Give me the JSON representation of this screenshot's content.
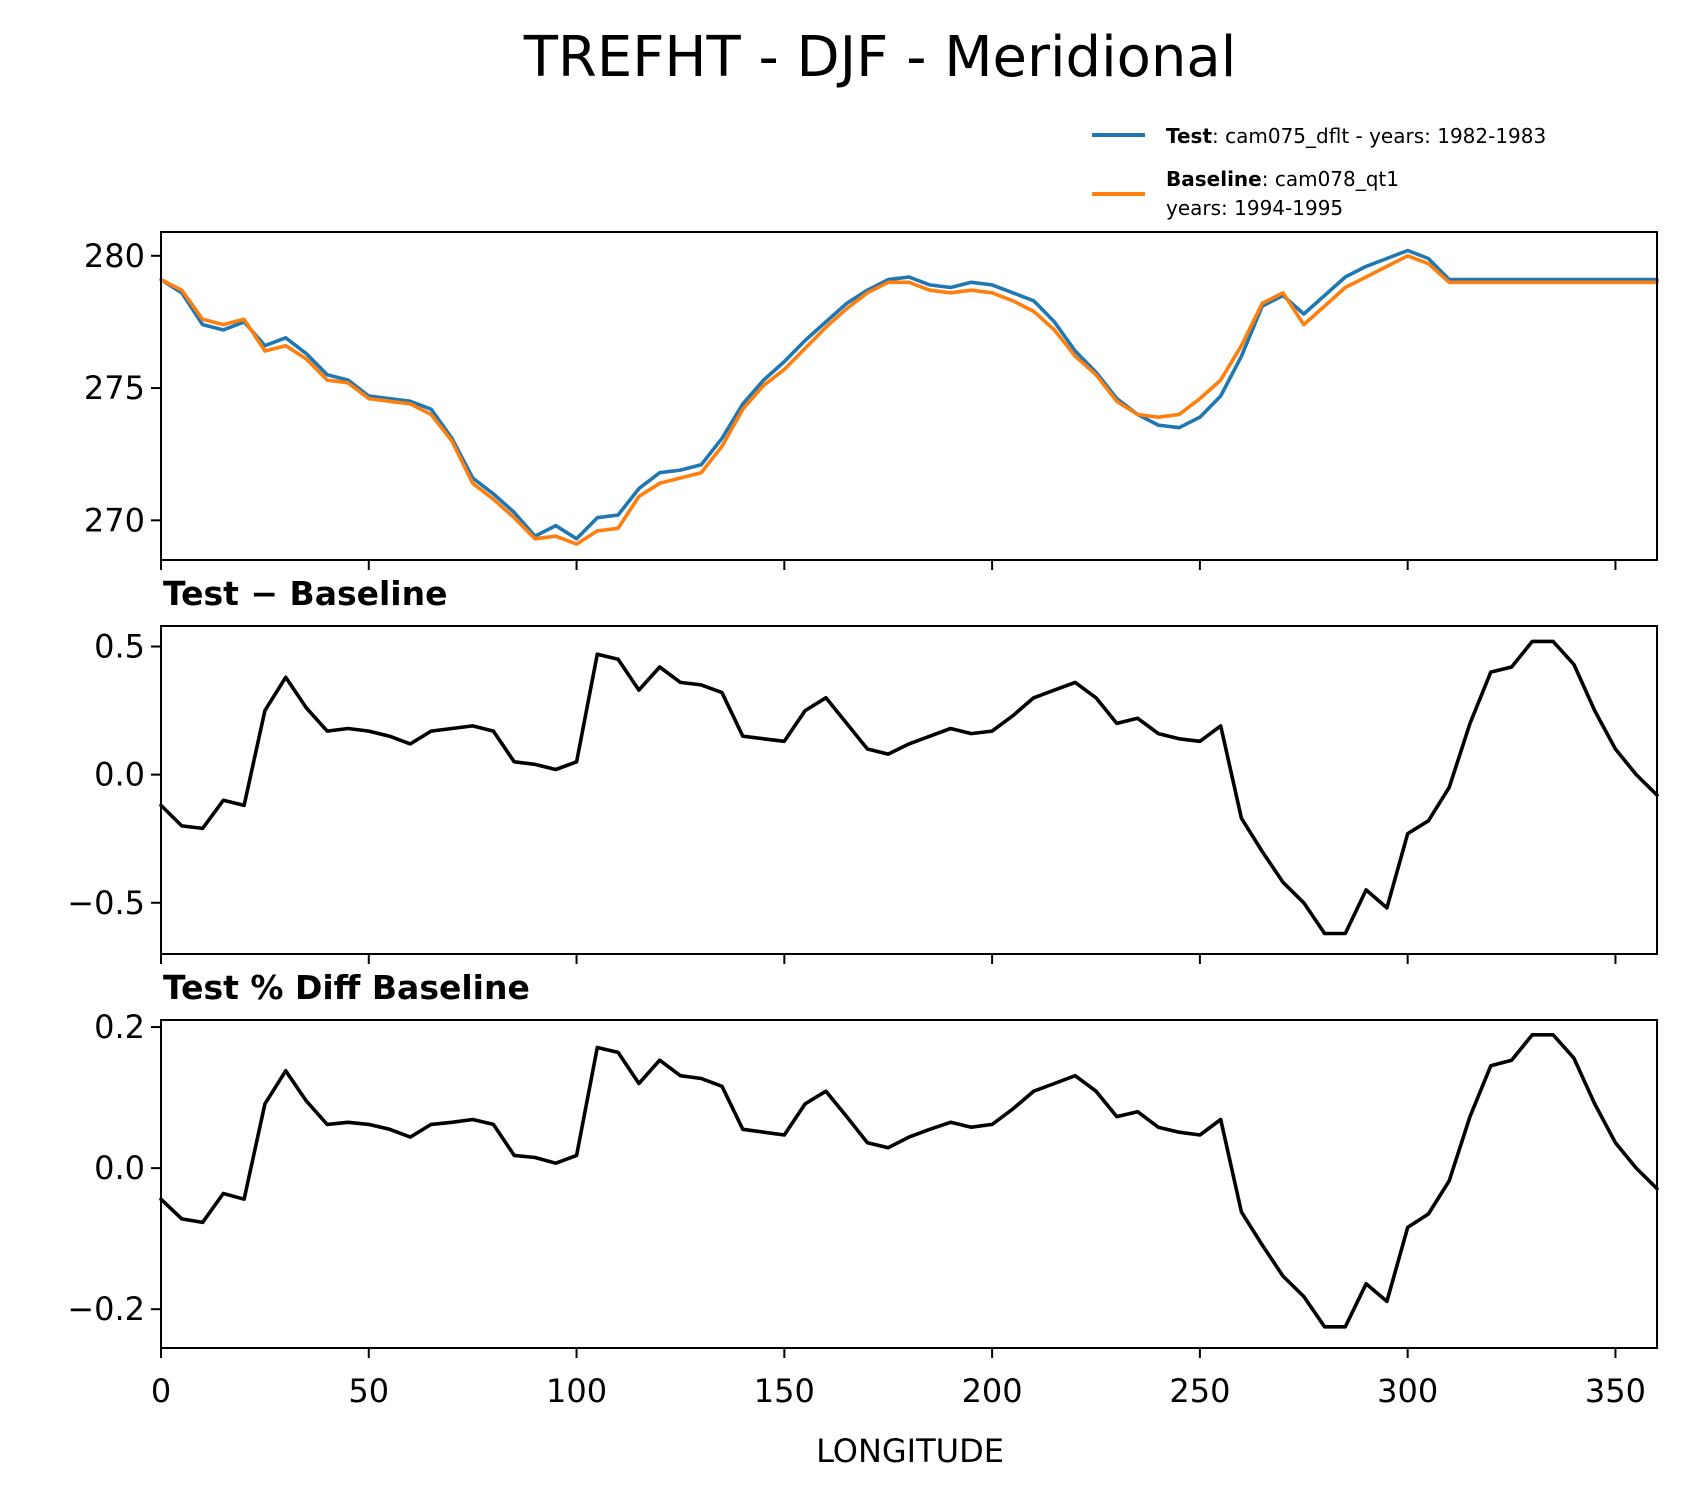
{
  "chart_data": {
    "type": "line",
    "title": "TREFHT - DJF - Meridional",
    "xlabel": "LONGITUDE",
    "xlim": [
      0,
      360
    ],
    "xticks": [
      0,
      50,
      100,
      150,
      200,
      250,
      300,
      350
    ],
    "xtick_labels": [
      "0",
      "50",
      "100",
      "150",
      "200",
      "250",
      "300",
      "350"
    ],
    "x": [
      0,
      5,
      10,
      15,
      20,
      25,
      30,
      35,
      40,
      45,
      50,
      55,
      60,
      65,
      70,
      75,
      80,
      85,
      90,
      95,
      100,
      105,
      110,
      115,
      120,
      125,
      130,
      135,
      140,
      145,
      150,
      155,
      160,
      165,
      170,
      175,
      180,
      185,
      190,
      195,
      200,
      205,
      210,
      215,
      220,
      225,
      230,
      235,
      240,
      245,
      250,
      255,
      260,
      265,
      270,
      275,
      280,
      285,
      290,
      295,
      300,
      305,
      310,
      315,
      320,
      325,
      330,
      335,
      340,
      345,
      350,
      355,
      360
    ],
    "panels": [
      {
        "title": "",
        "ylim": [
          268.5,
          280.9
        ],
        "yticks": [
          270,
          275,
          280
        ],
        "ytick_labels": [
          "270",
          "275",
          "280"
        ],
        "legend": {
          "placement": "above-right",
          "entries": [
            {
              "bold": "Test",
              "text": ": cam075_dflt - years: 1982-1983",
              "line2": ""
            },
            {
              "bold": "Baseline",
              "text": ": cam078_qt1",
              "line2": "years: 1994-1995"
            }
          ]
        },
        "series": [
          {
            "name": "Test",
            "color": "#1f77b4",
            "values": [
              279.1,
              278.6,
              277.4,
              277.2,
              277.5,
              276.6,
              276.9,
              276.3,
              275.5,
              275.3,
              274.7,
              274.6,
              274.5,
              274.2,
              273.1,
              271.6,
              271.0,
              270.3,
              269.4,
              269.8,
              269.3,
              270.1,
              270.2,
              271.2,
              271.8,
              271.9,
              272.1,
              273.1,
              274.4,
              275.3,
              276.0,
              276.8,
              277.5,
              278.2,
              278.7,
              279.1,
              279.2,
              278.9,
              278.8,
              279.0,
              278.9,
              278.6,
              278.3,
              277.5,
              276.4,
              275.6,
              274.6,
              274.0,
              273.6,
              273.5,
              273.9,
              274.7,
              276.2,
              278.1,
              278.5,
              277.8,
              278.5,
              279.2,
              279.6,
              279.9,
              280.2,
              279.9,
              279.1,
              279.1,
              279.1,
              279.1,
              279.1,
              279.1,
              279.1,
              279.1,
              279.1,
              279.1,
              279.1
            ]
          },
          {
            "name": "Baseline",
            "color": "#ff7f0e",
            "values": [
              279.1,
              278.7,
              277.6,
              277.4,
              277.6,
              276.4,
              276.6,
              276.1,
              275.3,
              275.2,
              274.6,
              274.5,
              274.4,
              274.0,
              273.0,
              271.4,
              270.8,
              270.1,
              269.3,
              269.4,
              269.1,
              269.6,
              269.7,
              270.9,
              271.4,
              271.6,
              271.8,
              272.8,
              274.2,
              275.1,
              275.7,
              276.5,
              277.3,
              278.0,
              278.6,
              279.0,
              279.0,
              278.7,
              278.6,
              278.7,
              278.6,
              278.3,
              277.9,
              277.2,
              276.2,
              275.5,
              274.5,
              274.0,
              273.9,
              274.0,
              274.6,
              275.3,
              276.6,
              278.2,
              278.6,
              277.4,
              278.1,
              278.8,
              279.2,
              279.6,
              280.0,
              279.7,
              279.0,
              279.0,
              279.0,
              279.0,
              279.0,
              279.0,
              279.0,
              279.0,
              279.0,
              279.0,
              279.0
            ]
          }
        ]
      },
      {
        "title": "Test − Baseline",
        "ylim": [
          -0.7,
          0.58
        ],
        "yticks": [
          -0.5,
          0.0,
          0.5
        ],
        "ytick_labels": [
          "−0.5",
          "0.0",
          "0.5"
        ],
        "series": [
          {
            "name": "Test − Baseline",
            "color": "#000000",
            "values": [
              -0.12,
              -0.2,
              -0.21,
              -0.1,
              -0.12,
              0.25,
              0.38,
              0.26,
              0.17,
              0.18,
              0.17,
              0.15,
              0.12,
              0.17,
              0.18,
              0.19,
              0.17,
              0.05,
              0.04,
              0.02,
              0.05,
              0.47,
              0.45,
              0.33,
              0.42,
              0.36,
              0.35,
              0.32,
              0.15,
              0.14,
              0.13,
              0.25,
              0.3,
              0.2,
              0.1,
              0.08,
              0.12,
              0.15,
              0.18,
              0.16,
              0.17,
              0.23,
              0.3,
              0.33,
              0.36,
              0.3,
              0.2,
              0.22,
              0.16,
              0.14,
              0.13,
              0.19,
              -0.17,
              -0.3,
              -0.42,
              -0.5,
              -0.62,
              -0.62,
              -0.45,
              -0.52,
              -0.23,
              -0.18,
              -0.05,
              0.2,
              0.4,
              0.42,
              0.52,
              0.52,
              0.43,
              0.25,
              0.1,
              0.0,
              -0.08
            ]
          }
        ]
      },
      {
        "title": "Test % Diff Baseline",
        "ylim": [
          -0.255,
          0.21
        ],
        "yticks": [
          -0.2,
          0.0,
          0.2
        ],
        "ytick_labels": [
          "−0.2",
          "0.0",
          "0.2"
        ],
        "series": [
          {
            "name": "Test % Diff Baseline",
            "color": "#000000",
            "values": [
              -0.044,
              -0.072,
              -0.077,
              -0.036,
              -0.044,
              0.091,
              0.138,
              0.095,
              0.062,
              0.065,
              0.062,
              0.055,
              0.044,
              0.062,
              0.065,
              0.069,
              0.062,
              0.018,
              0.015,
              0.007,
              0.018,
              0.171,
              0.164,
              0.12,
              0.153,
              0.131,
              0.127,
              0.116,
              0.055,
              0.051,
              0.047,
              0.091,
              0.109,
              0.073,
              0.036,
              0.029,
              0.044,
              0.055,
              0.065,
              0.058,
              0.062,
              0.084,
              0.109,
              0.12,
              0.131,
              0.109,
              0.073,
              0.08,
              0.058,
              0.051,
              0.047,
              0.069,
              -0.062,
              -0.109,
              -0.153,
              -0.182,
              -0.225,
              -0.225,
              -0.164,
              -0.189,
              -0.084,
              -0.065,
              -0.018,
              0.073,
              0.145,
              0.153,
              0.189,
              0.189,
              0.156,
              0.091,
              0.036,
              0.0,
              -0.029
            ]
          }
        ]
      }
    ]
  }
}
